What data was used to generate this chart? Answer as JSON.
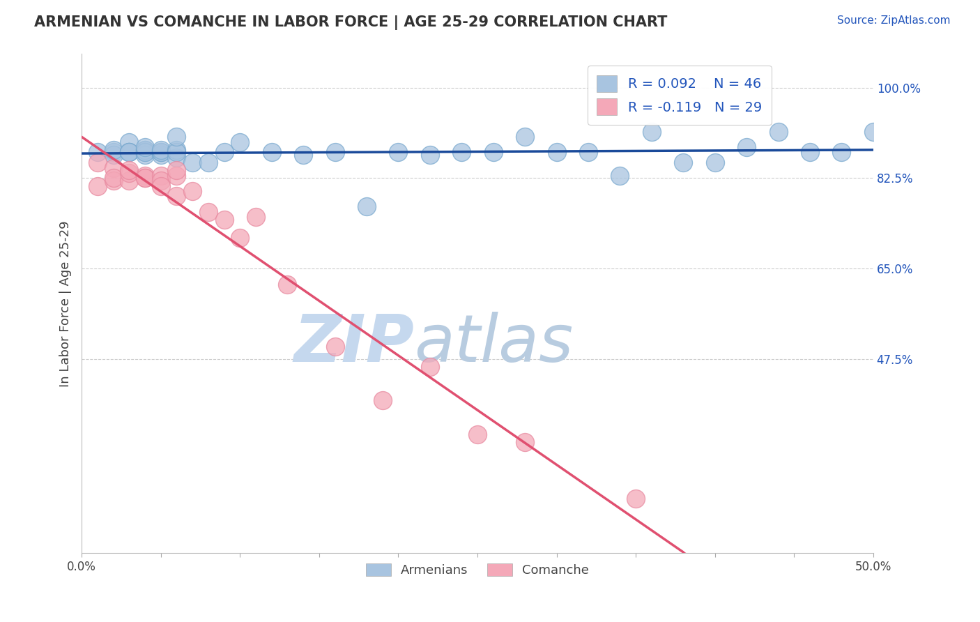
{
  "title": "ARMENIAN VS COMANCHE IN LABOR FORCE | AGE 25-29 CORRELATION CHART",
  "source_text": "Source: ZipAtlas.com",
  "xlabel": "",
  "ylabel": "In Labor Force | Age 25-29",
  "xlim": [
    0.0,
    0.5
  ],
  "ylim": [
    0.1,
    1.065
  ],
  "xticks": [
    0.0,
    0.05,
    0.1,
    0.15,
    0.2,
    0.25,
    0.3,
    0.35,
    0.4,
    0.45,
    0.5
  ],
  "xtick_labels": [
    "0.0%",
    "",
    "",
    "",
    "",
    "",
    "",
    "",
    "",
    "",
    "50.0%"
  ],
  "ytick_right": [
    1.0,
    0.825,
    0.65,
    0.475
  ],
  "ytick_right_labels": [
    "100.0%",
    "82.5%",
    "65.0%",
    "47.5%"
  ],
  "blue_R": 0.092,
  "blue_N": 46,
  "pink_R": -0.119,
  "pink_N": 29,
  "blue_color": "#a8c4e0",
  "pink_color": "#f4a8b8",
  "blue_edge_color": "#7aaacf",
  "pink_edge_color": "#e88aa0",
  "blue_line_color": "#1a4a9a",
  "pink_line_color": "#e05070",
  "legend_label_blue": "Armenians",
  "legend_label_pink": "Comanche",
  "blue_scatter_x": [
    0.01,
    0.02,
    0.02,
    0.02,
    0.03,
    0.03,
    0.03,
    0.03,
    0.04,
    0.04,
    0.04,
    0.04,
    0.04,
    0.04,
    0.05,
    0.05,
    0.05,
    0.05,
    0.06,
    0.06,
    0.06,
    0.06,
    0.07,
    0.08,
    0.09,
    0.1,
    0.12,
    0.14,
    0.16,
    0.18,
    0.2,
    0.22,
    0.24,
    0.26,
    0.28,
    0.3,
    0.32,
    0.34,
    0.36,
    0.38,
    0.4,
    0.42,
    0.44,
    0.46,
    0.48,
    0.5
  ],
  "blue_scatter_y": [
    0.875,
    0.875,
    0.87,
    0.88,
    0.895,
    0.875,
    0.875,
    0.875,
    0.88,
    0.875,
    0.87,
    0.88,
    0.875,
    0.885,
    0.87,
    0.875,
    0.875,
    0.88,
    0.865,
    0.88,
    0.875,
    0.905,
    0.855,
    0.855,
    0.875,
    0.895,
    0.875,
    0.87,
    0.875,
    0.77,
    0.875,
    0.87,
    0.875,
    0.875,
    0.905,
    0.875,
    0.875,
    0.83,
    0.915,
    0.855,
    0.855,
    0.885,
    0.915,
    0.875,
    0.875,
    0.915
  ],
  "pink_scatter_x": [
    0.01,
    0.01,
    0.02,
    0.02,
    0.02,
    0.03,
    0.03,
    0.03,
    0.04,
    0.04,
    0.04,
    0.05,
    0.05,
    0.05,
    0.06,
    0.06,
    0.06,
    0.07,
    0.08,
    0.09,
    0.1,
    0.11,
    0.13,
    0.16,
    0.19,
    0.22,
    0.25,
    0.28,
    0.35
  ],
  "pink_scatter_y": [
    0.855,
    0.81,
    0.845,
    0.82,
    0.825,
    0.82,
    0.835,
    0.84,
    0.83,
    0.825,
    0.825,
    0.83,
    0.82,
    0.81,
    0.79,
    0.83,
    0.84,
    0.8,
    0.76,
    0.745,
    0.71,
    0.75,
    0.62,
    0.5,
    0.395,
    0.46,
    0.33,
    0.315,
    0.205
  ],
  "pink_line_solid_end": 0.38,
  "watermark_zip": "ZIP",
  "watermark_atlas": "atlas",
  "watermark_color_zip": "#c5d8ee",
  "watermark_color_atlas": "#b8cce0",
  "background_color": "#ffffff",
  "grid_color": "#cccccc"
}
